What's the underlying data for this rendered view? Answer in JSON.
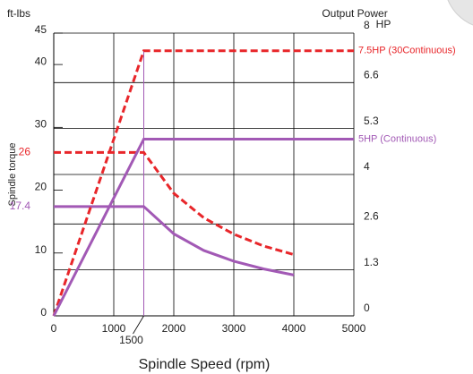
{
  "chart_data": {
    "type": "line",
    "y_label_top": "ft-lbs",
    "y2_title": "Output Power",
    "y2_unit": "HP",
    "y_label": "Spindle torque",
    "x_label": "Spindle Speed (rpm)",
    "xlim": [
      0,
      5000
    ],
    "xticks": [
      0,
      1000,
      2000,
      3000,
      4000,
      5000
    ],
    "ylim": [
      0,
      45
    ],
    "yticks": [
      0,
      10,
      20,
      30,
      40,
      45
    ],
    "y2lim": [
      0,
      8
    ],
    "y2ticks": [
      0,
      1.3,
      2.6,
      4,
      5.3,
      6.6,
      8
    ],
    "grid": true,
    "series": [
      {
        "color": "#e8262a",
        "dashed": true,
        "x": [
          0,
          1500,
          2000,
          2500,
          3000,
          3500,
          4000
        ],
        "values": [
          26,
          26,
          19.5,
          15.6,
          13,
          11.1,
          9.75
        ]
      },
      {
        "color": "#a259b5",
        "dashed": false,
        "x": [
          0,
          1500,
          2000,
          2500,
          3000,
          3500,
          4000
        ],
        "values": [
          17.4,
          17.4,
          13.05,
          10.4,
          8.7,
          7.46,
          6.5
        ]
      },
      {
        "color": "#e8262a",
        "dashed": true,
        "axis": "y2",
        "label": "7.5HP (30Continuous)",
        "x": [
          0,
          1500,
          5000
        ],
        "values": [
          0,
          7.5,
          7.5
        ]
      },
      {
        "color": "#a259b5",
        "dashed": false,
        "axis": "y2",
        "label": "5HP (Continuous)",
        "x": [
          0,
          1500,
          5000
        ],
        "values": [
          0,
          5,
          5
        ]
      }
    ],
    "y_markers": [
      {
        "value": 26,
        "color": "#e8262a"
      },
      {
        "value": 17.4,
        "color": "#a259b5"
      }
    ],
    "x_markers": [
      1500
    ]
  }
}
